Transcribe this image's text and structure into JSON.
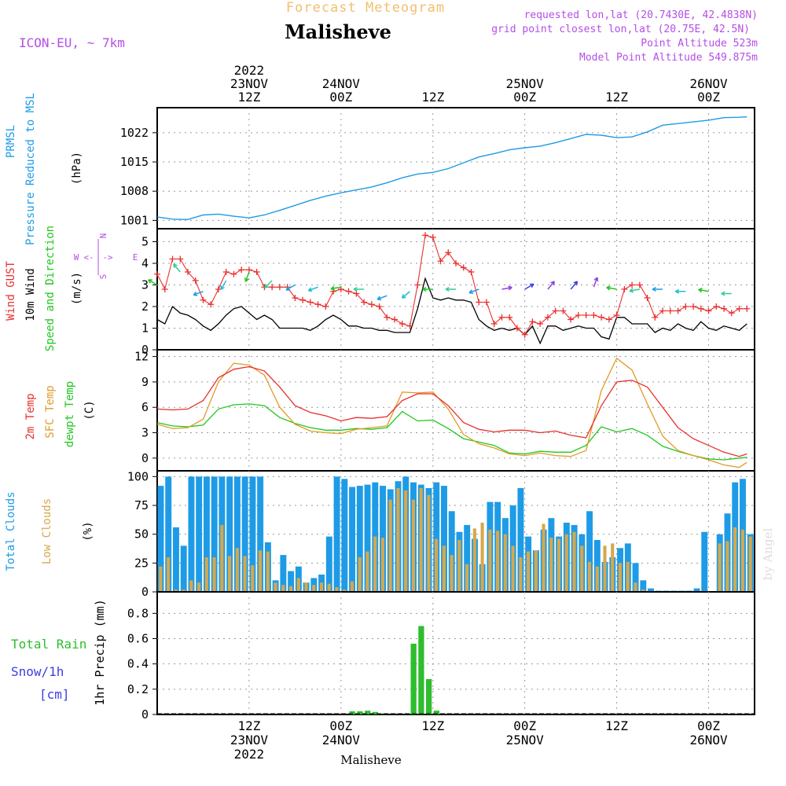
{
  "header": {
    "subtitle": "Forecast Meteogram",
    "title": "Malisheve",
    "model": "ICON-EU, ~ 7km",
    "requested": "requested lon,lat (20.7430E, 42.4838N)",
    "grid": "grid point closest lon,lat (20.75E, 42.5N)",
    "point_altitude": "Point Altitude 523m",
    "model_altitude": "Model Point Altitude 549.875m"
  },
  "footer": {
    "station": "Malisheve",
    "credit": "by Angel"
  },
  "time_axis": {
    "top_labels": [
      {
        "t": 12,
        "lines": [
          "2022",
          "23NOV",
          "12Z"
        ]
      },
      {
        "t": 24,
        "lines": [
          "24NOV",
          "00Z"
        ]
      },
      {
        "t": 36,
        "lines": [
          "12Z"
        ]
      },
      {
        "t": 48,
        "lines": [
          "25NOV",
          "00Z"
        ]
      },
      {
        "t": 60,
        "lines": [
          "12Z"
        ]
      },
      {
        "t": 72,
        "lines": [
          "26NOV",
          "00Z"
        ]
      }
    ],
    "bottom_labels": [
      {
        "t": 12,
        "lines": [
          "12Z",
          "23NOV",
          "2022"
        ]
      },
      {
        "t": 24,
        "lines": [
          "00Z",
          "24NOV"
        ]
      },
      {
        "t": 36,
        "lines": [
          "12Z"
        ]
      },
      {
        "t": 48,
        "lines": [
          "00Z",
          "25NOV"
        ]
      },
      {
        "t": 60,
        "lines": [
          "12Z"
        ]
      },
      {
        "t": 72,
        "lines": [
          "00Z",
          "26NOV"
        ]
      }
    ]
  },
  "colors": {
    "pressure": "#1e9be6",
    "gust": "#e8302e",
    "wind": "#000000",
    "temp": "#e8302e",
    "sfc": "#e39a28",
    "dew": "#1ec81e",
    "total_clouds": "#1e9be6",
    "low_clouds": "#d6a84c",
    "rain": "#2ebd2e",
    "snow": "#3c3ce6",
    "grid": "#9a9a9a",
    "header_subtitle": "#f0c070",
    "header_meta": "#b44ee6"
  },
  "panels": {
    "pressure": {
      "labels": [
        "PRMSL",
        "Pressure Reduced to MSL"
      ],
      "unit": "(hPa)",
      "ticks": [
        "1001",
        "1008",
        "1015",
        "1022"
      ]
    },
    "wind": {
      "labels": [
        "Wind GUST",
        "10m Wind",
        "Speed and Direction"
      ],
      "unit": "(m/s)",
      "ticks": [
        "0",
        "1",
        "2",
        "3",
        "4",
        "5"
      ],
      "compass": {
        "n": "N",
        "s": "S",
        "w": "W",
        "e": "E"
      }
    },
    "temp": {
      "labels": [
        "2m Temp",
        "SFC Temp",
        "dewpt Temp"
      ],
      "unit": "(C)",
      "ticks": [
        "0",
        "3",
        "6",
        "9",
        "12"
      ]
    },
    "clouds": {
      "labels": [
        "Total Clouds",
        "Low Clouds"
      ],
      "unit": "(%)",
      "ticks": [
        "0",
        "25",
        "50",
        "75",
        "100"
      ]
    },
    "precip": {
      "labels": [
        "Total  Rain",
        "Snow/1h",
        "[cm]"
      ],
      "unit": "1hr Precip (mm)",
      "ticks": [
        "0",
        "0.2",
        "0.4",
        "0.6",
        "0.8"
      ]
    }
  },
  "chart_data": {
    "type": "line",
    "x_unit": "hours from 23NOV 00Z",
    "xlim": [
      0,
      78
    ],
    "pressure": {
      "name": "PRMSL",
      "ylim": [
        999,
        1028
      ],
      "x": [
        0,
        2,
        4,
        6,
        8,
        10,
        12,
        14,
        16,
        18,
        20,
        22,
        24,
        26,
        28,
        30,
        32,
        34,
        36,
        38,
        40,
        42,
        44,
        46,
        48,
        50,
        52,
        54,
        56,
        58,
        60,
        62,
        64,
        66,
        68,
        70,
        72,
        74,
        76,
        77
      ],
      "y": [
        1001.8,
        1001.3,
        1001.2,
        1002.3,
        1002.5,
        1002.0,
        1001.6,
        1002.3,
        1003.4,
        1004.6,
        1005.8,
        1006.8,
        1007.6,
        1008.3,
        1009.0,
        1010.0,
        1011.2,
        1012.1,
        1012.5,
        1013.4,
        1014.8,
        1016.2,
        1017.0,
        1017.9,
        1018.4,
        1018.8,
        1019.6,
        1020.6,
        1021.6,
        1021.4,
        1020.8,
        1021.0,
        1022.2,
        1023.8,
        1024.2,
        1024.6,
        1025.0,
        1025.6,
        1025.7,
        1025.8
      ]
    },
    "wind": {
      "ylim": [
        0,
        5.6
      ],
      "gust": {
        "name": "Wind GUST",
        "x": [
          0,
          1,
          2,
          3,
          4,
          5,
          6,
          7,
          8,
          9,
          10,
          11,
          12,
          13,
          14,
          15,
          16,
          17,
          18,
          19,
          20,
          21,
          22,
          23,
          24,
          25,
          26,
          27,
          28,
          29,
          30,
          31,
          32,
          33,
          34,
          35,
          36,
          37,
          38,
          39,
          40,
          41,
          42,
          43,
          44,
          45,
          46,
          47,
          48,
          49,
          50,
          51,
          52,
          53,
          54,
          55,
          56,
          57,
          58,
          59,
          60,
          61,
          62,
          63,
          64,
          65,
          66,
          67,
          68,
          69,
          70,
          71,
          72,
          73,
          74,
          75,
          76,
          77
        ],
        "y": [
          3.5,
          2.8,
          4.2,
          4.2,
          3.6,
          3.2,
          2.3,
          2.1,
          2.8,
          3.6,
          3.5,
          3.7,
          3.7,
          3.6,
          2.9,
          2.9,
          2.9,
          2.9,
          2.4,
          2.3,
          2.2,
          2.1,
          2.0,
          2.7,
          2.8,
          2.7,
          2.6,
          2.2,
          2.1,
          2.0,
          1.5,
          1.4,
          1.2,
          1.1,
          3.0,
          5.3,
          5.2,
          4.1,
          4.5,
          4.0,
          3.8,
          3.6,
          2.2,
          2.2,
          1.2,
          1.5,
          1.5,
          1.0,
          0.7,
          1.3,
          1.2,
          1.5,
          1.8,
          1.8,
          1.4,
          1.6,
          1.6,
          1.6,
          1.5,
          1.4,
          1.6,
          2.8,
          3.0,
          3.0,
          2.4,
          1.5,
          1.8,
          1.8,
          1.8,
          2.0,
          2.0,
          1.9,
          1.8,
          2.0,
          1.9,
          1.7,
          1.9,
          1.9
        ]
      },
      "speed": {
        "name": "10m Wind",
        "x": [
          0,
          1,
          2,
          3,
          4,
          5,
          6,
          7,
          8,
          9,
          10,
          11,
          12,
          13,
          14,
          15,
          16,
          17,
          18,
          19,
          20,
          21,
          22,
          23,
          24,
          25,
          26,
          27,
          28,
          29,
          30,
          31,
          32,
          33,
          34,
          35,
          36,
          37,
          38,
          39,
          40,
          41,
          42,
          43,
          44,
          45,
          46,
          47,
          48,
          49,
          50,
          51,
          52,
          53,
          54,
          55,
          56,
          57,
          58,
          59,
          60,
          61,
          62,
          63,
          64,
          65,
          66,
          67,
          68,
          69,
          70,
          71,
          72,
          73,
          74,
          75,
          76,
          77
        ],
        "y": [
          1.4,
          1.2,
          2.0,
          1.7,
          1.6,
          1.4,
          1.1,
          0.9,
          1.2,
          1.6,
          1.9,
          2.0,
          1.7,
          1.4,
          1.6,
          1.4,
          1.0,
          1.0,
          1.0,
          1.0,
          0.9,
          1.1,
          1.4,
          1.6,
          1.4,
          1.1,
          1.1,
          1.0,
          1.0,
          0.9,
          0.9,
          0.8,
          0.8,
          0.8,
          1.9,
          3.3,
          2.4,
          2.3,
          2.4,
          2.3,
          2.3,
          2.2,
          1.4,
          1.1,
          0.9,
          1.0,
          0.9,
          1.0,
          0.7,
          1.1,
          0.3,
          1.1,
          1.1,
          0.9,
          1.0,
          1.1,
          1.0,
          1.0,
          0.6,
          0.5,
          1.5,
          1.5,
          1.2,
          1.2,
          1.2,
          0.8,
          1.0,
          0.9,
          1.2,
          1.0,
          0.9,
          1.3,
          1.0,
          0.9,
          1.1,
          1.0,
          0.9,
          1.2
        ]
      },
      "arrows": [
        {
          "t": 0,
          "dir_deg": 300,
          "speed": 3.0
        },
        {
          "t": 3,
          "dir_deg": 320,
          "speed": 3.6
        },
        {
          "t": 6,
          "dir_deg": 250,
          "speed": 2.7
        },
        {
          "t": 9,
          "dir_deg": 210,
          "speed": 3.2
        },
        {
          "t": 12,
          "dir_deg": 200,
          "speed": 3.6
        },
        {
          "t": 15,
          "dir_deg": 225,
          "speed": 3.2
        },
        {
          "t": 18,
          "dir_deg": 240,
          "speed": 3.0
        },
        {
          "t": 21,
          "dir_deg": 250,
          "speed": 2.9
        },
        {
          "t": 24,
          "dir_deg": 260,
          "speed": 2.9
        },
        {
          "t": 27,
          "dir_deg": 270,
          "speed": 2.8
        },
        {
          "t": 30,
          "dir_deg": 250,
          "speed": 2.5
        },
        {
          "t": 33,
          "dir_deg": 230,
          "speed": 2.7
        },
        {
          "t": 36,
          "dir_deg": 270,
          "speed": 2.8
        },
        {
          "t": 39,
          "dir_deg": 270,
          "speed": 2.8
        },
        {
          "t": 42,
          "dir_deg": 250,
          "speed": 2.8
        },
        {
          "t": 45,
          "dir_deg": 80,
          "speed": 2.8
        },
        {
          "t": 48,
          "dir_deg": 60,
          "speed": 2.8
        },
        {
          "t": 51,
          "dir_deg": 40,
          "speed": 2.8
        },
        {
          "t": 54,
          "dir_deg": 40,
          "speed": 2.8
        },
        {
          "t": 57,
          "dir_deg": 20,
          "speed": 2.9
        },
        {
          "t": 60,
          "dir_deg": 280,
          "speed": 2.8
        },
        {
          "t": 63,
          "dir_deg": 260,
          "speed": 2.8
        },
        {
          "t": 66,
          "dir_deg": 270,
          "speed": 2.8
        },
        {
          "t": 69,
          "dir_deg": 270,
          "speed": 2.7
        },
        {
          "t": 72,
          "dir_deg": 280,
          "speed": 2.7
        },
        {
          "t": 75,
          "dir_deg": 270,
          "speed": 2.6
        }
      ]
    },
    "temperature": {
      "ylim": [
        -1.5,
        12.8
      ],
      "x": [
        0,
        2,
        4,
        6,
        8,
        10,
        12,
        14,
        16,
        18,
        20,
        22,
        24,
        26,
        28,
        30,
        32,
        34,
        36,
        38,
        40,
        42,
        44,
        46,
        48,
        50,
        52,
        54,
        56,
        58,
        60,
        62,
        64,
        66,
        68,
        70,
        72,
        74,
        76,
        77
      ],
      "t2m": {
        "name": "2m Temp",
        "y": [
          5.8,
          5.7,
          5.8,
          6.8,
          9.5,
          10.5,
          10.8,
          10.3,
          8.4,
          6.2,
          5.4,
          5.0,
          4.4,
          4.8,
          4.7,
          4.9,
          6.8,
          7.6,
          7.6,
          6.2,
          4.2,
          3.4,
          3.1,
          3.3,
          3.3,
          3.0,
          3.2,
          2.7,
          2.4,
          6.2,
          9.0,
          9.2,
          8.4,
          6.0,
          3.6,
          2.3,
          1.5,
          0.7,
          0.2,
          0.5
        ]
      },
      "sfc": {
        "name": "SFC Temp",
        "y": [
          4.0,
          3.5,
          3.6,
          4.6,
          9.0,
          11.2,
          11.0,
          9.8,
          6.0,
          4.0,
          3.2,
          3.0,
          2.9,
          3.4,
          3.6,
          3.8,
          7.8,
          7.7,
          7.8,
          5.8,
          2.8,
          1.7,
          1.2,
          0.5,
          0.3,
          0.6,
          0.3,
          0.2,
          0.9,
          8.0,
          11.8,
          10.4,
          6.4,
          2.6,
          0.9,
          0.3,
          -0.2,
          -0.8,
          -1.1,
          -0.5
        ]
      },
      "dew": {
        "name": "dewpt Temp",
        "y": [
          4.2,
          3.8,
          3.7,
          3.9,
          5.8,
          6.3,
          6.4,
          6.2,
          4.8,
          4.1,
          3.6,
          3.3,
          3.3,
          3.5,
          3.4,
          3.6,
          5.5,
          4.4,
          4.5,
          3.5,
          2.3,
          1.9,
          1.5,
          0.6,
          0.5,
          0.8,
          0.7,
          0.7,
          1.5,
          3.7,
          3.1,
          3.5,
          2.7,
          1.4,
          0.8,
          0.3,
          -0.1,
          -0.2,
          0.0,
          0.1
        ]
      }
    },
    "clouds": {
      "ylim": [
        0,
        105
      ],
      "t": [
        0,
        1,
        2,
        3,
        4,
        5,
        6,
        7,
        8,
        9,
        10,
        11,
        12,
        13,
        14,
        15,
        16,
        17,
        18,
        19,
        20,
        21,
        22,
        23,
        24,
        25,
        26,
        27,
        28,
        29,
        30,
        31,
        32,
        33,
        34,
        35,
        36,
        37,
        38,
        39,
        40,
        41,
        42,
        43,
        44,
        45,
        46,
        47,
        48,
        49,
        50,
        51,
        52,
        53,
        54,
        55,
        56,
        57,
        58,
        59,
        60,
        61,
        62,
        63,
        64,
        65,
        66,
        67,
        68,
        69,
        70,
        71,
        72,
        73,
        74,
        75,
        76,
        77
      ],
      "total": {
        "name": "Total Clouds",
        "values": [
          92,
          100,
          56,
          40,
          100,
          100,
          100,
          100,
          100,
          100,
          100,
          100,
          100,
          100,
          43,
          10,
          32,
          18,
          22,
          8,
          12,
          15,
          48,
          100,
          98,
          91,
          92,
          93,
          95,
          92,
          89,
          96,
          100,
          95,
          93,
          90,
          95,
          92,
          70,
          52,
          58,
          46,
          24,
          78,
          78,
          64,
          75,
          90,
          48,
          36,
          54,
          64,
          48,
          60,
          58,
          50,
          70,
          45,
          26,
          30,
          38,
          42,
          25,
          10,
          3,
          1,
          1,
          1,
          1,
          1,
          3,
          52,
          0,
          50,
          68,
          95,
          98,
          50
        ]
      },
      "low": {
        "name": "Low Clouds",
        "values": [
          22,
          30,
          2,
          2,
          10,
          8,
          30,
          30,
          58,
          31,
          38,
          31,
          23,
          36,
          35,
          8,
          6,
          5,
          12,
          8,
          6,
          8,
          7,
          4,
          2,
          9,
          30,
          35,
          48,
          47,
          80,
          90,
          88,
          80,
          90,
          84,
          46,
          40,
          32,
          45,
          24,
          55,
          60,
          54,
          53,
          50,
          40,
          30,
          35,
          36,
          59,
          47,
          46,
          50,
          52,
          40,
          26,
          22,
          40,
          42,
          25,
          26,
          8,
          2,
          0,
          0,
          0,
          0,
          0,
          0,
          0,
          0,
          0,
          42,
          44,
          56,
          54,
          48
        ]
      }
    },
    "precip": {
      "ylim": [
        0,
        0.97
      ],
      "rain": {
        "name": "Total Rain",
        "t": [
          25,
          26,
          27,
          28,
          33,
          34,
          35,
          36
        ],
        "values": [
          0.025,
          0.025,
          0.03,
          0.02,
          0.56,
          0.7,
          0.28,
          0.03
        ]
      },
      "snow": {
        "name": "Snow/1h",
        "values": []
      }
    }
  }
}
